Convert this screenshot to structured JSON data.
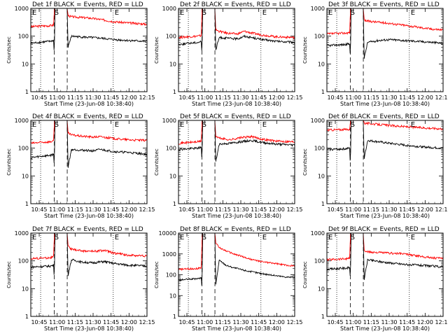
{
  "shared": {
    "xlabel": "Start Time (23-Jun-08 10:38:40)",
    "ylabel": "Counts/sec",
    "x_tick_labels": [
      "10:45",
      "11:00",
      "11:15",
      "11:30",
      "11:45",
      "12:00",
      "12:15"
    ],
    "y_tick_labels": [
      "1",
      "10",
      "100",
      "1000"
    ],
    "markers": [
      "E",
      "S",
      "E"
    ],
    "colors": {
      "events": "#000000",
      "lld": "#ff0000",
      "axes": "#000000"
    }
  },
  "chart_data": [
    {
      "type": "line",
      "title": "Det 1f BLACK = Events, RED = LLD",
      "xlabel": "Start Time (23-Jun-08 10:38:40)",
      "ylabel": "Counts/sec",
      "xlim": [
        10.633,
        12.25
      ],
      "ylim": [
        1,
        1000
      ],
      "x_ticks": [
        10.75,
        11.0,
        11.25,
        11.5,
        11.75,
        12.0,
        12.25
      ],
      "dashed_lines_x": [
        10.96,
        11.14
      ],
      "dotted_lines_x": [
        10.77,
        11.78
      ],
      "series": [
        {
          "name": "LLD",
          "color": "#ff0000",
          "x": [
            10.633,
            10.75,
            10.9,
            10.95,
            10.96,
            10.97,
            11.14,
            11.15,
            11.2,
            11.3,
            11.45,
            11.6,
            11.8,
            12.0,
            12.25
          ],
          "y": [
            220,
            230,
            240,
            250,
            800,
            1100,
            1100,
            550,
            500,
            480,
            450,
            400,
            330,
            300,
            270
          ]
        },
        {
          "name": "Events",
          "color": "#000000",
          "x": [
            10.633,
            10.75,
            10.9,
            10.95,
            10.96,
            10.97,
            11.14,
            11.15,
            11.2,
            11.3,
            11.45,
            11.6,
            11.8,
            12.0,
            12.25
          ],
          "y": [
            55,
            60,
            65,
            70,
            20,
            1100,
            1100,
            40,
            100,
            95,
            90,
            85,
            75,
            70,
            65
          ]
        }
      ]
    },
    {
      "type": "line",
      "title": "Det 2f BLACK = Events, RED = LLD",
      "xlabel": "Start Time (23-Jun-08 10:38:40)",
      "ylabel": "Counts/sec",
      "xlim": [
        10.633,
        12.25
      ],
      "ylim": [
        1,
        1000
      ],
      "x_ticks": [
        10.75,
        11.0,
        11.25,
        11.5,
        11.75,
        12.0,
        12.25
      ],
      "dashed_lines_x": [
        10.96,
        11.14
      ],
      "dotted_lines_x": [
        10.77,
        11.78
      ],
      "series": [
        {
          "name": "LLD",
          "color": "#ff0000",
          "x": [
            10.633,
            10.75,
            10.9,
            10.95,
            10.96,
            10.97,
            11.14,
            11.15,
            11.2,
            11.3,
            11.45,
            11.55,
            11.65,
            11.8,
            12.0,
            12.25
          ],
          "y": [
            90,
            95,
            100,
            105,
            800,
            1100,
            1100,
            170,
            150,
            130,
            120,
            150,
            130,
            110,
            95,
            90
          ]
        },
        {
          "name": "Events",
          "color": "#000000",
          "x": [
            10.633,
            10.75,
            10.9,
            10.95,
            10.96,
            10.97,
            11.14,
            11.15,
            11.2,
            11.3,
            11.45,
            11.55,
            11.65,
            11.8,
            12.0,
            12.25
          ],
          "y": [
            50,
            55,
            60,
            65,
            20,
            1100,
            1100,
            30,
            90,
            85,
            80,
            100,
            90,
            75,
            65,
            60
          ]
        }
      ]
    },
    {
      "type": "line",
      "title": "Det 3f BLACK = Events, RED = LLD",
      "xlabel": "Start Time (23-Jun-08 10:38:40)",
      "ylabel": "Counts/sec",
      "xlim": [
        10.633,
        12.25
      ],
      "ylim": [
        1,
        1000
      ],
      "x_ticks": [
        10.75,
        11.0,
        11.25,
        11.5,
        11.75,
        12.0,
        12.25
      ],
      "dashed_lines_x": [
        10.96,
        11.14
      ],
      "dotted_lines_x": [
        10.77,
        11.78
      ],
      "series": [
        {
          "name": "LLD",
          "color": "#ff0000",
          "x": [
            10.633,
            10.75,
            10.9,
            10.95,
            10.96,
            10.97,
            11.14,
            11.15,
            11.2,
            11.35,
            11.5,
            11.7,
            11.9,
            12.1,
            12.25
          ],
          "y": [
            120,
            125,
            130,
            135,
            800,
            1100,
            1100,
            380,
            350,
            320,
            290,
            250,
            210,
            180,
            170
          ]
        },
        {
          "name": "Events",
          "color": "#000000",
          "x": [
            10.633,
            10.75,
            10.9,
            10.95,
            10.96,
            10.97,
            11.14,
            11.15,
            11.2,
            11.35,
            11.5,
            11.7,
            11.9,
            12.1,
            12.25
          ],
          "y": [
            45,
            48,
            50,
            55,
            15,
            1100,
            1100,
            15,
            60,
            70,
            75,
            70,
            65,
            60,
            55
          ]
        }
      ]
    },
    {
      "type": "line",
      "title": "Det 4f BLACK = Events, RED = LLD",
      "xlabel": "Start Time (23-Jun-08 10:38:40)",
      "ylabel": "Counts/sec",
      "xlim": [
        10.633,
        12.25
      ],
      "ylim": [
        1,
        1000
      ],
      "x_ticks": [
        10.75,
        11.0,
        11.25,
        11.5,
        11.75,
        12.0,
        12.25
      ],
      "dashed_lines_x": [
        10.96,
        11.14
      ],
      "dotted_lines_x": [
        10.77,
        11.78
      ],
      "series": [
        {
          "name": "LLD",
          "color": "#ff0000",
          "x": [
            10.633,
            10.75,
            10.9,
            10.95,
            10.96,
            10.97,
            11.14,
            11.15,
            11.2,
            11.35,
            11.5,
            11.6,
            11.8,
            12.0,
            12.25
          ],
          "y": [
            150,
            160,
            170,
            180,
            800,
            1100,
            1100,
            350,
            300,
            270,
            250,
            260,
            220,
            200,
            190
          ]
        },
        {
          "name": "Events",
          "color": "#000000",
          "x": [
            10.633,
            10.75,
            10.9,
            10.95,
            10.96,
            10.97,
            11.14,
            11.15,
            11.2,
            11.35,
            11.5,
            11.6,
            11.8,
            12.0,
            12.25
          ],
          "y": [
            45,
            50,
            55,
            60,
            20,
            1100,
            1100,
            20,
            90,
            85,
            80,
            90,
            75,
            70,
            60
          ]
        }
      ]
    },
    {
      "type": "line",
      "title": "Det 5f BLACK = Events, RED = LLD",
      "xlabel": "Start Time (23-Jun-08 10:38:40)",
      "ylabel": "Counts/sec",
      "xlim": [
        10.633,
        12.25
      ],
      "ylim": [
        1,
        1000
      ],
      "x_ticks": [
        10.75,
        11.0,
        11.25,
        11.5,
        11.75,
        12.0,
        12.25
      ],
      "dashed_lines_x": [
        10.96,
        11.14
      ],
      "dotted_lines_x": [
        10.77,
        11.78
      ],
      "series": [
        {
          "name": "LLD",
          "color": "#ff0000",
          "x": [
            10.633,
            10.75,
            10.9,
            10.95,
            10.96,
            10.97,
            11.14,
            11.15,
            11.2,
            11.35,
            11.5,
            11.65,
            11.8,
            12.0,
            12.25
          ],
          "y": [
            150,
            160,
            170,
            180,
            800,
            1100,
            1100,
            270,
            230,
            200,
            240,
            260,
            210,
            180,
            170
          ]
        },
        {
          "name": "Events",
          "color": "#000000",
          "x": [
            10.633,
            10.75,
            10.9,
            10.95,
            10.96,
            10.97,
            11.14,
            11.15,
            11.2,
            11.35,
            11.5,
            11.65,
            11.8,
            12.0,
            12.25
          ],
          "y": [
            90,
            95,
            100,
            110,
            30,
            1100,
            1100,
            30,
            140,
            150,
            170,
            190,
            160,
            140,
            130
          ]
        }
      ]
    },
    {
      "type": "line",
      "title": "Det 6f BLACK = Events, RED = LLD",
      "xlabel": "Start Time (23-Jun-08 10:38:40)",
      "ylabel": "Counts/sec",
      "xlim": [
        10.633,
        12.25
      ],
      "ylim": [
        1,
        1000
      ],
      "x_ticks": [
        10.75,
        11.0,
        11.25,
        11.5,
        11.75,
        12.0,
        12.25
      ],
      "dashed_lines_x": [
        10.96,
        11.14
      ],
      "dotted_lines_x": [
        10.77,
        11.78
      ],
      "series": [
        {
          "name": "LLD",
          "color": "#ff0000",
          "x": [
            10.633,
            10.75,
            10.9,
            10.95,
            10.96,
            10.97,
            11.14,
            11.15,
            11.2,
            11.35,
            11.5,
            11.7,
            11.9,
            12.1,
            12.25
          ],
          "y": [
            450,
            460,
            470,
            480,
            900,
            1100,
            1100,
            800,
            780,
            720,
            660,
            600,
            560,
            520,
            500
          ]
        },
        {
          "name": "Events",
          "color": "#000000",
          "x": [
            10.633,
            10.75,
            10.9,
            10.95,
            10.96,
            10.97,
            11.14,
            11.15,
            11.2,
            11.35,
            11.5,
            11.7,
            11.9,
            12.1,
            12.25
          ],
          "y": [
            90,
            92,
            95,
            100,
            20,
            1100,
            1100,
            40,
            190,
            170,
            150,
            130,
            115,
            105,
            100
          ]
        }
      ]
    },
    {
      "type": "line",
      "title": "Det 7f BLACK = Events, RED = LLD",
      "xlabel": "Start Time (23-Jun-08 10:38:40)",
      "ylabel": "Counts/sec",
      "xlim": [
        10.633,
        12.25
      ],
      "ylim": [
        1,
        1000
      ],
      "x_ticks": [
        10.75,
        11.0,
        11.25,
        11.5,
        11.75,
        12.0,
        12.25
      ],
      "dashed_lines_x": [
        10.96,
        11.14
      ],
      "dotted_lines_x": [
        10.77,
        11.78
      ],
      "series": [
        {
          "name": "LLD",
          "color": "#ff0000",
          "x": [
            10.633,
            10.75,
            10.9,
            10.95,
            10.96,
            10.97,
            11.14,
            11.15,
            11.2,
            11.35,
            11.5,
            11.65,
            11.8,
            12.0,
            12.25
          ],
          "y": [
            120,
            125,
            130,
            140,
            800,
            1100,
            1100,
            350,
            260,
            230,
            220,
            240,
            190,
            160,
            150
          ]
        },
        {
          "name": "Events",
          "color": "#000000",
          "x": [
            10.633,
            10.75,
            10.9,
            10.95,
            10.96,
            10.97,
            11.14,
            11.15,
            11.2,
            11.35,
            11.5,
            11.65,
            11.8,
            12.0,
            12.25
          ],
          "y": [
            60,
            62,
            65,
            70,
            20,
            1100,
            1100,
            30,
            110,
            90,
            85,
            95,
            80,
            70,
            65
          ]
        }
      ]
    },
    {
      "type": "line",
      "title": "Det 8f BLACK = Events, RED = LLD",
      "xlabel": "Start Time (23-Jun-08 10:38:40)",
      "ylabel": "Counts/sec",
      "xlim": [
        10.633,
        12.25
      ],
      "ylim": [
        1,
        10000
      ],
      "x_ticks": [
        10.75,
        11.0,
        11.25,
        11.5,
        11.75,
        12.0,
        12.25
      ],
      "dashed_lines_x": [
        10.96,
        11.14
      ],
      "dotted_lines_x": [
        10.77,
        11.78
      ],
      "series": [
        {
          "name": "LLD",
          "color": "#ff0000",
          "x": [
            10.633,
            10.75,
            10.9,
            10.95,
            10.96,
            10.97,
            11.14,
            11.15,
            11.2,
            11.3,
            11.4,
            11.5,
            11.6,
            11.75,
            11.9,
            12.1,
            12.25
          ],
          "y": [
            180,
            190,
            200,
            220,
            5000,
            12000,
            12000,
            3500,
            2000,
            1400,
            1000,
            800,
            600,
            450,
            380,
            300,
            260
          ]
        },
        {
          "name": "Events",
          "color": "#000000",
          "x": [
            10.633,
            10.75,
            10.9,
            10.95,
            10.96,
            10.97,
            11.14,
            11.15,
            11.2,
            11.3,
            11.4,
            11.5,
            11.6,
            11.75,
            11.9,
            12.1,
            12.25
          ],
          "y": [
            55,
            60,
            65,
            70,
            20,
            12000,
            12000,
            30,
            500,
            280,
            220,
            180,
            150,
            120,
            100,
            80,
            75
          ]
        }
      ]
    },
    {
      "type": "line",
      "title": "Det 9f BLACK = Events, RED = LLD",
      "xlabel": "Start Time (23-Jun-08 10:38:40)",
      "ylabel": "Counts/sec",
      "xlim": [
        10.633,
        12.25
      ],
      "ylim": [
        1,
        1000
      ],
      "x_ticks": [
        10.75,
        11.0,
        11.25,
        11.5,
        11.75,
        12.0,
        12.25
      ],
      "dashed_lines_x": [
        10.96,
        11.14
      ],
      "dotted_lines_x": [
        10.77,
        11.78
      ],
      "series": [
        {
          "name": "LLD",
          "color": "#ff0000",
          "x": [
            10.633,
            10.75,
            10.9,
            10.95,
            10.96,
            10.97,
            11.14,
            11.15,
            11.2,
            11.35,
            11.5,
            11.7,
            11.9,
            12.1,
            12.25
          ],
          "y": [
            110,
            115,
            120,
            125,
            800,
            1100,
            1100,
            230,
            210,
            200,
            190,
            180,
            150,
            130,
            120
          ]
        },
        {
          "name": "Events",
          "color": "#000000",
          "x": [
            10.633,
            10.75,
            10.9,
            10.95,
            10.96,
            10.97,
            11.14,
            11.15,
            11.2,
            11.35,
            11.5,
            11.7,
            11.9,
            12.1,
            12.25
          ],
          "y": [
            50,
            52,
            55,
            58,
            20,
            1100,
            1100,
            20,
            110,
            95,
            85,
            75,
            70,
            65,
            60
          ]
        }
      ]
    }
  ]
}
